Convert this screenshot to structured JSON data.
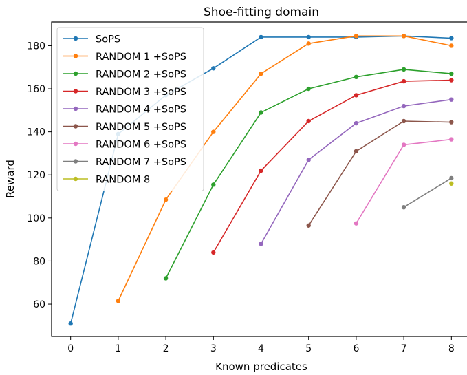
{
  "chart_data": {
    "type": "line",
    "title": "Shoe-fitting domain",
    "xlabel": "Known predicates",
    "ylabel": "Reward",
    "xlim": [
      -0.4,
      8.4
    ],
    "ylim": [
      45,
      191
    ],
    "xticks": [
      "0",
      "1",
      "2",
      "3",
      "4",
      "5",
      "6",
      "7",
      "8"
    ],
    "yticks": [
      "60",
      "80",
      "100",
      "120",
      "140",
      "160",
      "180"
    ],
    "grid": false,
    "legend_position": "top-left",
    "series": [
      {
        "name": "SoPS",
        "color": "#1f77b4",
        "x": [
          0,
          1,
          2,
          3,
          4,
          5,
          6,
          7,
          8
        ],
        "y": [
          51,
          139,
          157,
          169.5,
          184,
          184,
          184,
          184.5,
          183.5
        ]
      },
      {
        "name": "RANDOM 1 +SoPS",
        "color": "#ff7f0e",
        "x": [
          1,
          2,
          3,
          4,
          5,
          6,
          7,
          8
        ],
        "y": [
          61.5,
          108.5,
          140,
          167,
          181,
          184.5,
          184.5,
          180
        ]
      },
      {
        "name": "RANDOM 2 +SoPS",
        "color": "#2ca02c",
        "x": [
          2,
          3,
          4,
          5,
          6,
          7,
          8
        ],
        "y": [
          72,
          115.5,
          149,
          160,
          165.5,
          169,
          167
        ]
      },
      {
        "name": "RANDOM 3 +SoPS",
        "color": "#d62728",
        "x": [
          3,
          4,
          5,
          6,
          7,
          8
        ],
        "y": [
          84,
          122,
          145,
          157,
          163.5,
          164
        ]
      },
      {
        "name": "RANDOM 4 +SoPS",
        "color": "#9467bd",
        "x": [
          4,
          5,
          6,
          7,
          8
        ],
        "y": [
          88,
          127,
          144,
          152,
          155
        ]
      },
      {
        "name": "RANDOM 5 +SoPS",
        "color": "#8c564b",
        "x": [
          5,
          6,
          7,
          8
        ],
        "y": [
          96.5,
          131,
          145,
          144.5
        ]
      },
      {
        "name": "RANDOM 6 +SoPS",
        "color": "#e377c2",
        "x": [
          6,
          7,
          8
        ],
        "y": [
          97.5,
          134,
          136.5
        ]
      },
      {
        "name": "RANDOM 7 +SoPS",
        "color": "#7f7f7f",
        "x": [
          7,
          8
        ],
        "y": [
          105,
          118.5
        ]
      },
      {
        "name": "RANDOM 8",
        "color": "#bcbd22",
        "x": [
          8
        ],
        "y": [
          116
        ]
      }
    ]
  }
}
